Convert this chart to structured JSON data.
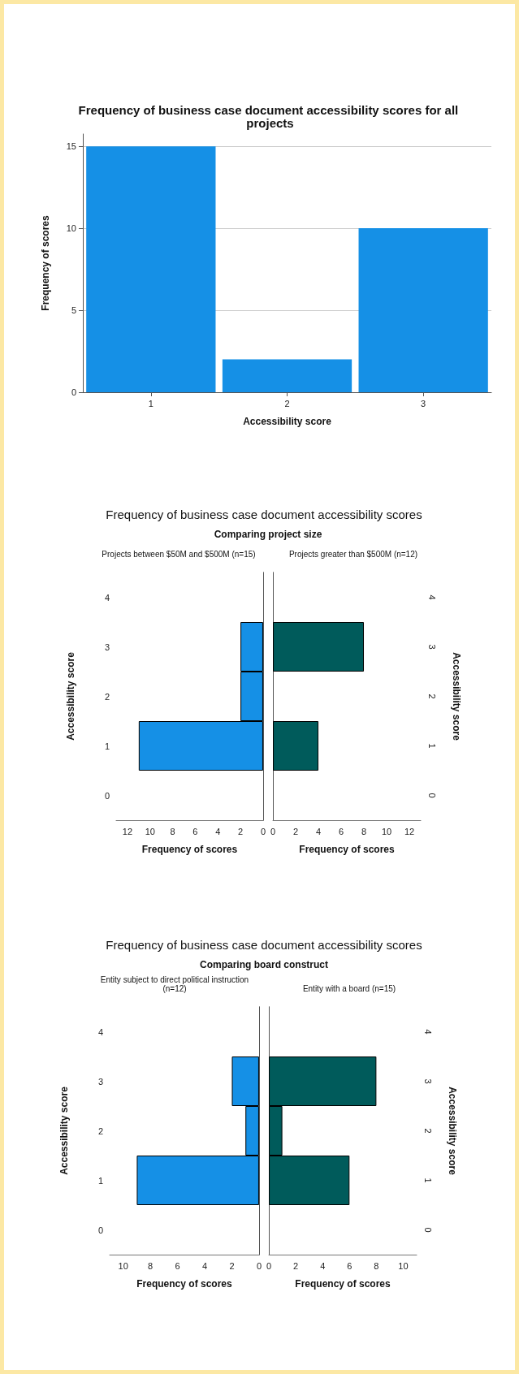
{
  "chart_data": [
    {
      "type": "bar",
      "title": "Frequency of business case document accessibility scores for all projects",
      "categories": [
        "1",
        "2",
        "3"
      ],
      "values": [
        15,
        2,
        10
      ],
      "color": "#1590e6",
      "ylim": [
        0,
        15.75
      ],
      "yticks": [
        0,
        5,
        10,
        15
      ],
      "grid": "y",
      "xlabel": "Accessibility score",
      "ylabel": "Frequency of scores"
    },
    {
      "type": "bar",
      "orientation": "horizontal",
      "title": "Frequency of business case document accessibility scores",
      "subtitle": "Comparing project size",
      "annotations": [
        "Projects between $50M and $500M (n=15)"
      ],
      "categories": [
        "4",
        "3",
        "2",
        "1",
        "0"
      ],
      "values": [
        null,
        2,
        2,
        11,
        null
      ],
      "color": "#1590e6",
      "xlim": [
        13,
        0
      ],
      "xticks": [
        12,
        10,
        8,
        6,
        4,
        2,
        0
      ],
      "xlabel": "Frequency of scores",
      "ylabel": "Accessibility score"
    },
    {
      "type": "bar",
      "orientation": "horizontal",
      "annotations": [
        "Projects greater than $500M (n=12)"
      ],
      "categories": [
        "4",
        "3",
        "2",
        "1",
        "0"
      ],
      "values": [
        null,
        8,
        null,
        4,
        null
      ],
      "color": "#005b5b",
      "xlim": [
        0,
        13
      ],
      "xticks": [
        0,
        2,
        4,
        6,
        8,
        10,
        12
      ],
      "xlabel": "Frequency of scores",
      "ylabel": "Accessibility score"
    },
    {
      "type": "bar",
      "orientation": "horizontal",
      "title": "Frequency of business case document accessibility scores",
      "subtitle": "Comparing board construct",
      "annotations": [
        "Entity subject to direct political instruction (n=12)"
      ],
      "categories": [
        "4",
        "3",
        "2",
        "1",
        "0"
      ],
      "values": [
        null,
        2,
        1,
        9,
        null
      ],
      "color": "#1590e6",
      "xlim": [
        11,
        0
      ],
      "xticks": [
        10,
        8,
        6,
        4,
        2,
        0
      ],
      "xlabel": "Frequency of scores",
      "ylabel": "Accessibility score"
    },
    {
      "type": "bar",
      "orientation": "horizontal",
      "annotations": [
        "Entity with a board (n=15)"
      ],
      "categories": [
        "4",
        "3",
        "2",
        "1",
        "0"
      ],
      "values": [
        null,
        8,
        1,
        6,
        null
      ],
      "color": "#005b5b",
      "xlim": [
        0,
        11
      ],
      "xticks": [
        0,
        2,
        4,
        6,
        8,
        10
      ],
      "xlabel": "Frequency of scores",
      "ylabel": "Accessibility score"
    }
  ]
}
